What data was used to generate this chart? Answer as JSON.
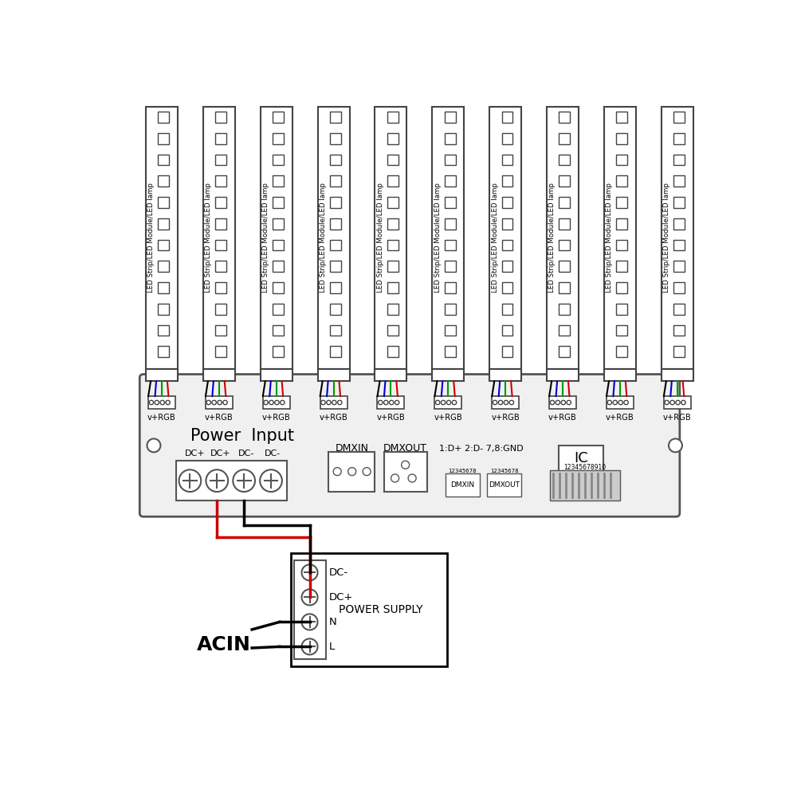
{
  "bg_color": "#ffffff",
  "n_channels": 10,
  "wire_colors": [
    "#000000",
    "#0000cc",
    "#009900",
    "#cc0000"
  ],
  "led_strip_label": "LED Strip/LED Module/LED lamp",
  "vrgb_label": "v+RGB",
  "power_input_label": "Power  Input",
  "dc_labels": [
    "DC+",
    "DC+",
    "DC-",
    "DC-"
  ],
  "dmxin_label": "DMXIN",
  "dmxout_label": "DMXOUT",
  "dmx_note": "1:D+ 2:D- 7,8:GND",
  "ic_label": "IC",
  "dmxin_pin_label": "12345678",
  "dmxout_pin_label": "12345678",
  "ic_pin_label": "12345678910",
  "power_supply_label": "POWER SUPPLY",
  "acin_label": "ACIN",
  "ps_terminals": [
    "DC-",
    "DC+",
    "N",
    "L"
  ]
}
